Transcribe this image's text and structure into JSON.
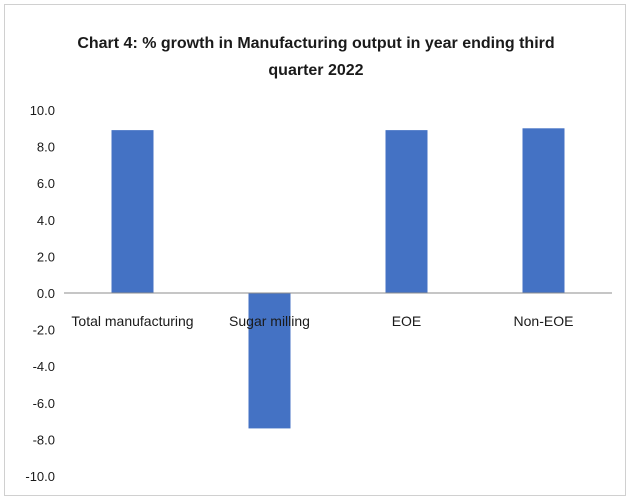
{
  "chart_data": {
    "type": "bar",
    "title_lines": [
      "Chart 4: % growth in Manufacturing output in year ending third",
      "quarter 2022"
    ],
    "categories": [
      "Total manufacturing",
      "Sugar milling",
      "EOE",
      "Non-EOE"
    ],
    "values": [
      8.9,
      -7.4,
      8.9,
      9.0
    ],
    "ylim": [
      -10.0,
      10.0
    ],
    "yticks": [
      "10.0",
      "8.0",
      "6.0",
      "4.0",
      "2.0",
      "0.0",
      "-2.0",
      "-4.0",
      "-6.0",
      "-8.0",
      "-10.0"
    ],
    "xlabel": "",
    "ylabel": "",
    "grid": false,
    "legend": "none",
    "bar_color": "#4472C4"
  }
}
